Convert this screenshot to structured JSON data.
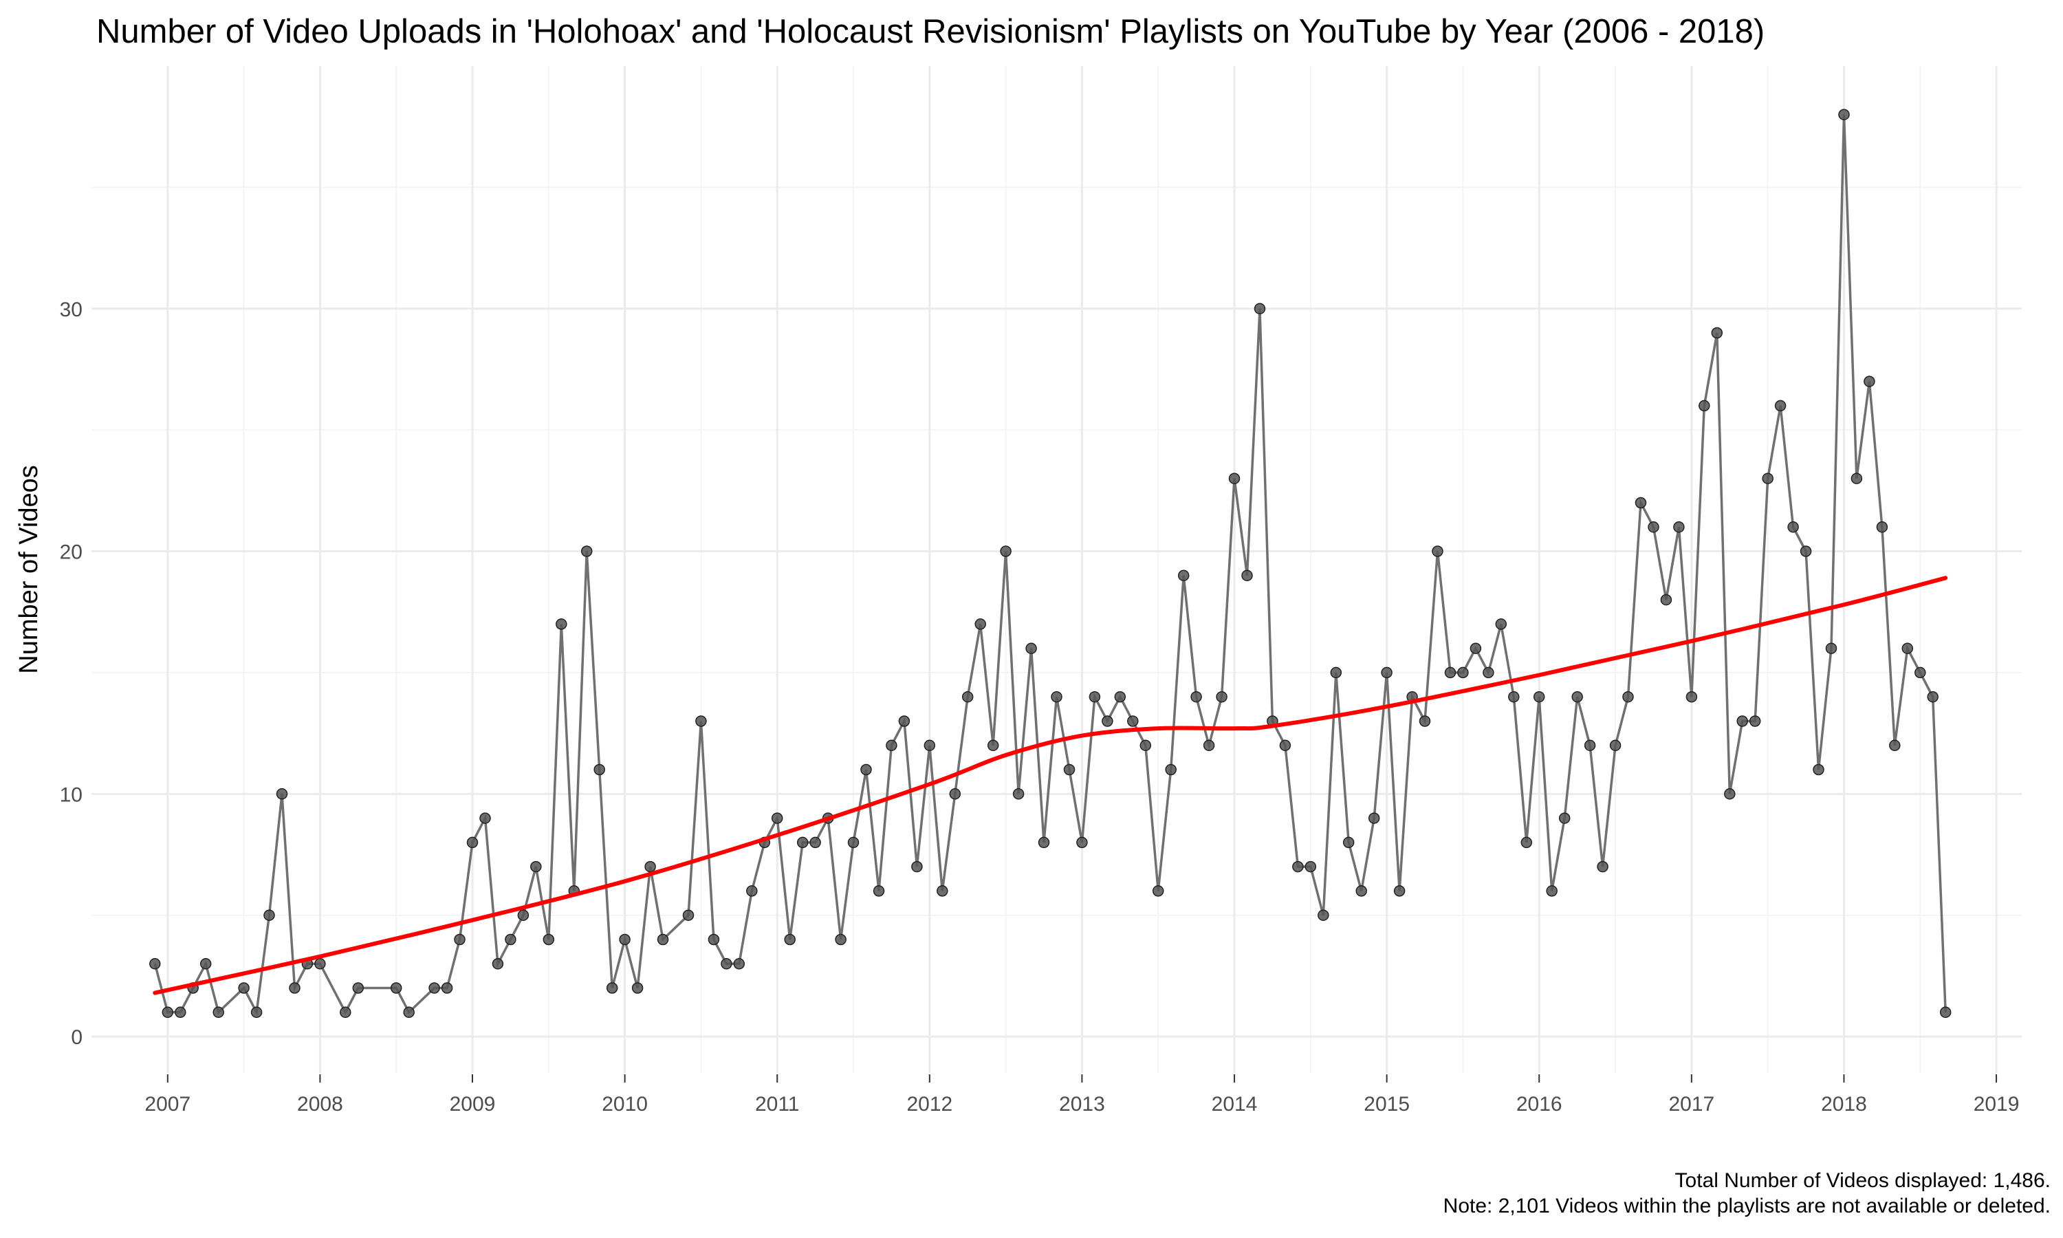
{
  "chart_data": {
    "type": "line",
    "title": "Number of Video Uploads in 'Holohoax' and 'Holocaust Revisionism' Playlists on YouTube by Year (2006 - 2018)",
    "xlabel": "",
    "ylabel": "Number of Videos",
    "caption": [
      "Total Number of Videos displayed: 1,486.",
      "Note: 2,101 Videos within the playlists are not available or deleted."
    ],
    "x_ticks": [
      "2007",
      "2008",
      "2009",
      "2010",
      "2011",
      "2012",
      "2013",
      "2014",
      "2015",
      "2016",
      "2017",
      "2018",
      "2019"
    ],
    "y_ticks": [
      "0",
      "10",
      "20",
      "30"
    ],
    "xlim": [
      "2006-07-01",
      "2019-03-01"
    ],
    "ylim": [
      -1.5,
      40
    ],
    "grid": true,
    "series": [
      {
        "color": "#555555",
        "points": [
          {
            "x": "2006-12",
            "y": 3
          },
          {
            "x": "2007-01",
            "y": 1
          },
          {
            "x": "2007-02",
            "y": 1
          },
          {
            "x": "2007-03",
            "y": 2
          },
          {
            "x": "2007-04",
            "y": 3
          },
          {
            "x": "2007-05",
            "y": 1
          },
          {
            "x": "2007-07",
            "y": 2
          },
          {
            "x": "2007-08",
            "y": 1
          },
          {
            "x": "2007-09",
            "y": 5
          },
          {
            "x": "2007-10",
            "y": 10
          },
          {
            "x": "2007-11",
            "y": 2
          },
          {
            "x": "2007-12",
            "y": 3
          },
          {
            "x": "2008-01",
            "y": 3
          },
          {
            "x": "2008-03",
            "y": 1
          },
          {
            "x": "2008-04",
            "y": 2
          },
          {
            "x": "2008-07",
            "y": 2
          },
          {
            "x": "2008-08",
            "y": 1
          },
          {
            "x": "2008-10",
            "y": 2
          },
          {
            "x": "2008-11",
            "y": 2
          },
          {
            "x": "2008-12",
            "y": 4
          },
          {
            "x": "2009-01",
            "y": 8
          },
          {
            "x": "2009-02",
            "y": 9
          },
          {
            "x": "2009-03",
            "y": 3
          },
          {
            "x": "2009-04",
            "y": 4
          },
          {
            "x": "2009-05",
            "y": 5
          },
          {
            "x": "2009-06",
            "y": 7
          },
          {
            "x": "2009-07",
            "y": 4
          },
          {
            "x": "2009-08",
            "y": 17
          },
          {
            "x": "2009-09",
            "y": 6
          },
          {
            "x": "2009-10",
            "y": 20
          },
          {
            "x": "2009-11",
            "y": 11
          },
          {
            "x": "2009-12",
            "y": 2
          },
          {
            "x": "2010-01",
            "y": 4
          },
          {
            "x": "2010-02",
            "y": 2
          },
          {
            "x": "2010-03",
            "y": 7
          },
          {
            "x": "2010-04",
            "y": 4
          },
          {
            "x": "2010-06",
            "y": 5
          },
          {
            "x": "2010-07",
            "y": 13
          },
          {
            "x": "2010-08",
            "y": 4
          },
          {
            "x": "2010-09",
            "y": 3
          },
          {
            "x": "2010-10",
            "y": 3
          },
          {
            "x": "2010-11",
            "y": 6
          },
          {
            "x": "2010-12",
            "y": 8
          },
          {
            "x": "2011-01",
            "y": 9
          },
          {
            "x": "2011-02",
            "y": 4
          },
          {
            "x": "2011-03",
            "y": 8
          },
          {
            "x": "2011-04",
            "y": 8
          },
          {
            "x": "2011-05",
            "y": 9
          },
          {
            "x": "2011-06",
            "y": 4
          },
          {
            "x": "2011-07",
            "y": 8
          },
          {
            "x": "2011-08",
            "y": 11
          },
          {
            "x": "2011-09",
            "y": 6
          },
          {
            "x": "2011-10",
            "y": 12
          },
          {
            "x": "2011-11",
            "y": 13
          },
          {
            "x": "2011-12",
            "y": 7
          },
          {
            "x": "2012-01",
            "y": 12
          },
          {
            "x": "2012-02",
            "y": 6
          },
          {
            "x": "2012-03",
            "y": 10
          },
          {
            "x": "2012-04",
            "y": 14
          },
          {
            "x": "2012-05",
            "y": 17
          },
          {
            "x": "2012-06",
            "y": 12
          },
          {
            "x": "2012-07",
            "y": 20
          },
          {
            "x": "2012-08",
            "y": 10
          },
          {
            "x": "2012-09",
            "y": 16
          },
          {
            "x": "2012-10",
            "y": 8
          },
          {
            "x": "2012-11",
            "y": 14
          },
          {
            "x": "2012-12",
            "y": 11
          },
          {
            "x": "2013-01",
            "y": 8
          },
          {
            "x": "2013-02",
            "y": 14
          },
          {
            "x": "2013-03",
            "y": 13
          },
          {
            "x": "2013-04",
            "y": 14
          },
          {
            "x": "2013-05",
            "y": 13
          },
          {
            "x": "2013-06",
            "y": 12
          },
          {
            "x": "2013-07",
            "y": 6
          },
          {
            "x": "2013-08",
            "y": 11
          },
          {
            "x": "2013-09",
            "y": 19
          },
          {
            "x": "2013-10",
            "y": 14
          },
          {
            "x": "2013-11",
            "y": 12
          },
          {
            "x": "2013-12",
            "y": 14
          },
          {
            "x": "2014-01",
            "y": 23
          },
          {
            "x": "2014-02",
            "y": 19
          },
          {
            "x": "2014-03",
            "y": 30
          },
          {
            "x": "2014-04",
            "y": 13
          },
          {
            "x": "2014-05",
            "y": 12
          },
          {
            "x": "2014-06",
            "y": 7
          },
          {
            "x": "2014-07",
            "y": 7
          },
          {
            "x": "2014-08",
            "y": 5
          },
          {
            "x": "2014-09",
            "y": 15
          },
          {
            "x": "2014-10",
            "y": 8
          },
          {
            "x": "2014-11",
            "y": 6
          },
          {
            "x": "2014-12",
            "y": 9
          },
          {
            "x": "2015-01",
            "y": 15
          },
          {
            "x": "2015-02",
            "y": 6
          },
          {
            "x": "2015-03",
            "y": 14
          },
          {
            "x": "2015-04",
            "y": 13
          },
          {
            "x": "2015-05",
            "y": 20
          },
          {
            "x": "2015-06",
            "y": 15
          },
          {
            "x": "2015-07",
            "y": 15
          },
          {
            "x": "2015-08",
            "y": 16
          },
          {
            "x": "2015-09",
            "y": 15
          },
          {
            "x": "2015-10",
            "y": 17
          },
          {
            "x": "2015-11",
            "y": 14
          },
          {
            "x": "2015-12",
            "y": 8
          },
          {
            "x": "2016-01",
            "y": 14
          },
          {
            "x": "2016-02",
            "y": 6
          },
          {
            "x": "2016-03",
            "y": 9
          },
          {
            "x": "2016-04",
            "y": 14
          },
          {
            "x": "2016-05",
            "y": 12
          },
          {
            "x": "2016-06",
            "y": 7
          },
          {
            "x": "2016-07",
            "y": 12
          },
          {
            "x": "2016-08",
            "y": 14
          },
          {
            "x": "2016-09",
            "y": 22
          },
          {
            "x": "2016-10",
            "y": 21
          },
          {
            "x": "2016-11",
            "y": 18
          },
          {
            "x": "2016-12",
            "y": 21
          },
          {
            "x": "2017-01",
            "y": 14
          },
          {
            "x": "2017-02",
            "y": 26
          },
          {
            "x": "2017-03",
            "y": 29
          },
          {
            "x": "2017-04",
            "y": 10
          },
          {
            "x": "2017-05",
            "y": 13
          },
          {
            "x": "2017-06",
            "y": 13
          },
          {
            "x": "2017-07",
            "y": 23
          },
          {
            "x": "2017-08",
            "y": 26
          },
          {
            "x": "2017-09",
            "y": 21
          },
          {
            "x": "2017-10",
            "y": 20
          },
          {
            "x": "2017-11",
            "y": 11
          },
          {
            "x": "2017-12",
            "y": 16
          },
          {
            "x": "2018-01",
            "y": 38
          },
          {
            "x": "2018-02",
            "y": 23
          },
          {
            "x": "2018-03",
            "y": 27
          },
          {
            "x": "2018-04",
            "y": 21
          },
          {
            "x": "2018-05",
            "y": 12
          },
          {
            "x": "2018-06",
            "y": 16
          },
          {
            "x": "2018-07",
            "y": 15
          },
          {
            "x": "2018-08",
            "y": 14
          },
          {
            "x": "2018-09",
            "y": 1
          }
        ]
      },
      {
        "type": "smooth",
        "color": "#ff0000",
        "points": [
          {
            "x": "2006-12",
            "y": 1.8
          },
          {
            "x": "2008-01",
            "y": 3.3
          },
          {
            "x": "2009-01",
            "y": 4.8
          },
          {
            "x": "2010-01",
            "y": 6.4
          },
          {
            "x": "2011-01",
            "y": 8.3
          },
          {
            "x": "2012-01",
            "y": 10.4
          },
          {
            "x": "2012-07",
            "y": 11.6
          },
          {
            "x": "2013-01",
            "y": 12.4
          },
          {
            "x": "2013-07",
            "y": 12.7
          },
          {
            "x": "2014-01",
            "y": 12.7
          },
          {
            "x": "2014-04",
            "y": 12.8
          },
          {
            "x": "2015-01",
            "y": 13.6
          },
          {
            "x": "2016-01",
            "y": 14.9
          },
          {
            "x": "2017-01",
            "y": 16.3
          },
          {
            "x": "2018-01",
            "y": 17.8
          },
          {
            "x": "2018-09",
            "y": 18.9
          }
        ]
      }
    ]
  }
}
